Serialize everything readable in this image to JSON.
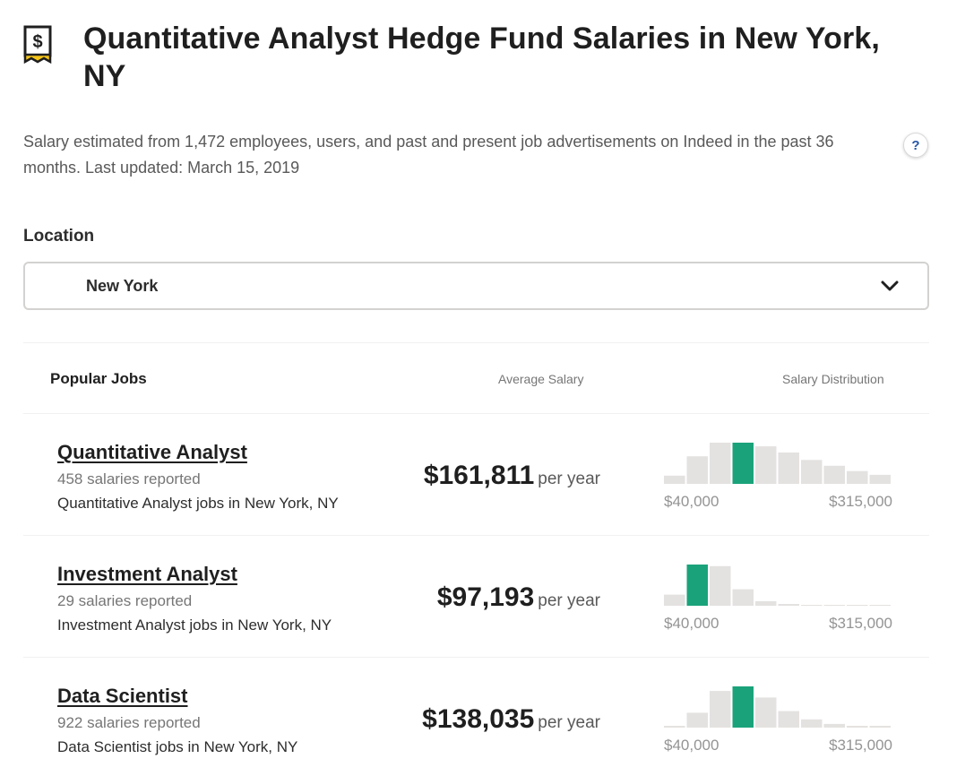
{
  "page": {
    "title": "Quantitative Analyst Hedge Fund Salaries in New York, NY",
    "subtitle": "Salary estimated from 1,472 employees, users, and past and present job advertisements on Indeed in the past 36 months. Last updated: March 15, 2019",
    "help_label": "?"
  },
  "icons": {
    "title_icon": "dollar-receipt-icon",
    "help": "question-icon",
    "dropdown": "chevron-down-icon"
  },
  "colors": {
    "highlight_bar": "#1aa37a",
    "bar": "#e4e2e0",
    "text": "#2d2d2d",
    "muted": "#767676"
  },
  "location": {
    "label": "Location",
    "value": "New York"
  },
  "table": {
    "headers": {
      "jobs": "Popular Jobs",
      "average": "Average Salary",
      "distribution": "Salary Distribution"
    },
    "rows": [
      {
        "title": "Quantitative Analyst",
        "count": "458 salaries reported",
        "link": "Quantitative Analyst jobs in New York, NY",
        "salary": "$161,811",
        "unit": "per year",
        "range_min": "$40,000",
        "range_max": "$315,000",
        "distribution": [
          0.2,
          0.67,
          1.0,
          1.0,
          0.91,
          0.76,
          0.58,
          0.44,
          0.31,
          0.22
        ],
        "highlight_index": 3
      },
      {
        "title": "Investment Analyst",
        "count": "29 salaries reported",
        "link": "Investment Analyst jobs in New York, NY",
        "salary": "$97,193",
        "unit": "per year",
        "range_min": "$40,000",
        "range_max": "$315,000",
        "distribution": [
          0.27,
          1.0,
          0.96,
          0.4,
          0.11,
          0.02,
          0,
          0,
          0,
          0
        ],
        "highlight_index": 1
      },
      {
        "title": "Data Scientist",
        "count": "922 salaries reported",
        "link": "Data Scientist jobs in New York, NY",
        "salary": "$138,035",
        "unit": "per year",
        "range_min": "$40,000",
        "range_max": "$315,000",
        "distribution": [
          0.04,
          0.36,
          0.89,
          1.0,
          0.73,
          0.4,
          0.2,
          0.09,
          0.04,
          0.02
        ],
        "highlight_index": 3
      }
    ]
  }
}
